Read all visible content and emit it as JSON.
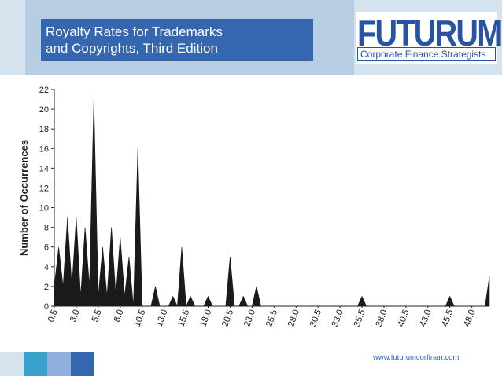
{
  "header": {
    "title_line1": "Royalty Rates for Trademarks",
    "title_line2": "and Copyrights, Third Edition"
  },
  "logo": {
    "word": "FUTURUM",
    "tagline": "Corporate Finance Strategists"
  },
  "footer": {
    "url": "www.futurumcorfinan.com"
  },
  "colors": {
    "title_box": "#3566b0",
    "header_band": "#d5e3ee",
    "logo_blue": "#2753a2",
    "chart_fill": "#1a1a1a",
    "footer_squares": [
      "#d5e3ee",
      "#3aa1cf",
      "#8fb0dd",
      "#3566b0"
    ]
  },
  "chart_data": {
    "type": "area",
    "ylabel": "Number of Occurrences",
    "xlabel": "",
    "ylim": [
      0,
      22
    ],
    "yticks": [
      0,
      2,
      4,
      6,
      8,
      10,
      12,
      14,
      16,
      18,
      20,
      22
    ],
    "xlim": [
      0.5,
      50.0
    ],
    "xtick_labels": [
      "0.5",
      "3.0",
      "5.5",
      "8.0",
      "10.5",
      "13.0",
      "15.5",
      "18.0",
      "20.5",
      "23.0",
      "25.5",
      "28.0",
      "30.5",
      "33.0",
      "35.5",
      "38.0",
      "40.5",
      "43.0",
      "45.5",
      "48.0"
    ],
    "grid": false,
    "series": [
      {
        "x": [
          0.5,
          1.0,
          1.5,
          2.0,
          2.5,
          3.0,
          3.5,
          4.0,
          4.5,
          5.0,
          5.5,
          6.0,
          6.5,
          7.0,
          7.5,
          8.0,
          8.5,
          9.0,
          9.5,
          10.0,
          10.5,
          11.0,
          11.5,
          12.0,
          12.5,
          13.0,
          13.5,
          14.0,
          14.5,
          15.0,
          15.5,
          16.0,
          16.5,
          17.0,
          17.5,
          18.0,
          18.5,
          19.0,
          19.5,
          20.0,
          20.5,
          21.0,
          21.5,
          22.0,
          22.5,
          23.0,
          23.5,
          24.0,
          24.5,
          25.0,
          25.5,
          26.0,
          26.5,
          27.0,
          27.5,
          28.0,
          28.5,
          29.0,
          29.5,
          30.0,
          30.5,
          31.0,
          31.5,
          32.0,
          32.5,
          33.0,
          33.5,
          34.0,
          34.5,
          35.0,
          35.5,
          36.0,
          36.5,
          37.0,
          37.5,
          38.0,
          38.5,
          39.0,
          39.5,
          40.0,
          40.5,
          41.0,
          41.5,
          42.0,
          42.5,
          43.0,
          43.5,
          44.0,
          44.5,
          45.0,
          45.5,
          46.0,
          46.5,
          47.0,
          47.5,
          48.0,
          48.5,
          49.0,
          49.5,
          50.0
        ],
        "values": [
          2,
          6,
          2,
          9,
          2,
          9,
          1,
          8,
          2,
          21,
          1,
          6,
          1,
          8,
          1,
          7,
          1,
          5,
          0,
          16,
          0,
          0,
          0,
          2,
          0,
          0,
          0,
          1,
          0,
          6,
          0,
          1,
          0,
          0,
          0,
          1,
          0,
          0,
          0,
          0,
          5,
          0,
          0,
          1,
          0,
          0,
          2,
          0,
          0,
          0,
          0,
          0,
          0,
          0,
          0,
          0,
          0,
          0,
          0,
          0,
          0,
          0,
          0,
          0,
          0,
          0,
          0,
          0,
          0,
          0,
          1,
          0,
          0,
          0,
          0,
          0,
          0,
          0,
          0,
          0,
          0,
          0,
          0,
          0,
          0,
          0,
          0,
          0,
          0,
          0,
          1,
          0,
          0,
          0,
          0,
          0,
          0,
          0,
          0,
          3
        ]
      }
    ]
  }
}
